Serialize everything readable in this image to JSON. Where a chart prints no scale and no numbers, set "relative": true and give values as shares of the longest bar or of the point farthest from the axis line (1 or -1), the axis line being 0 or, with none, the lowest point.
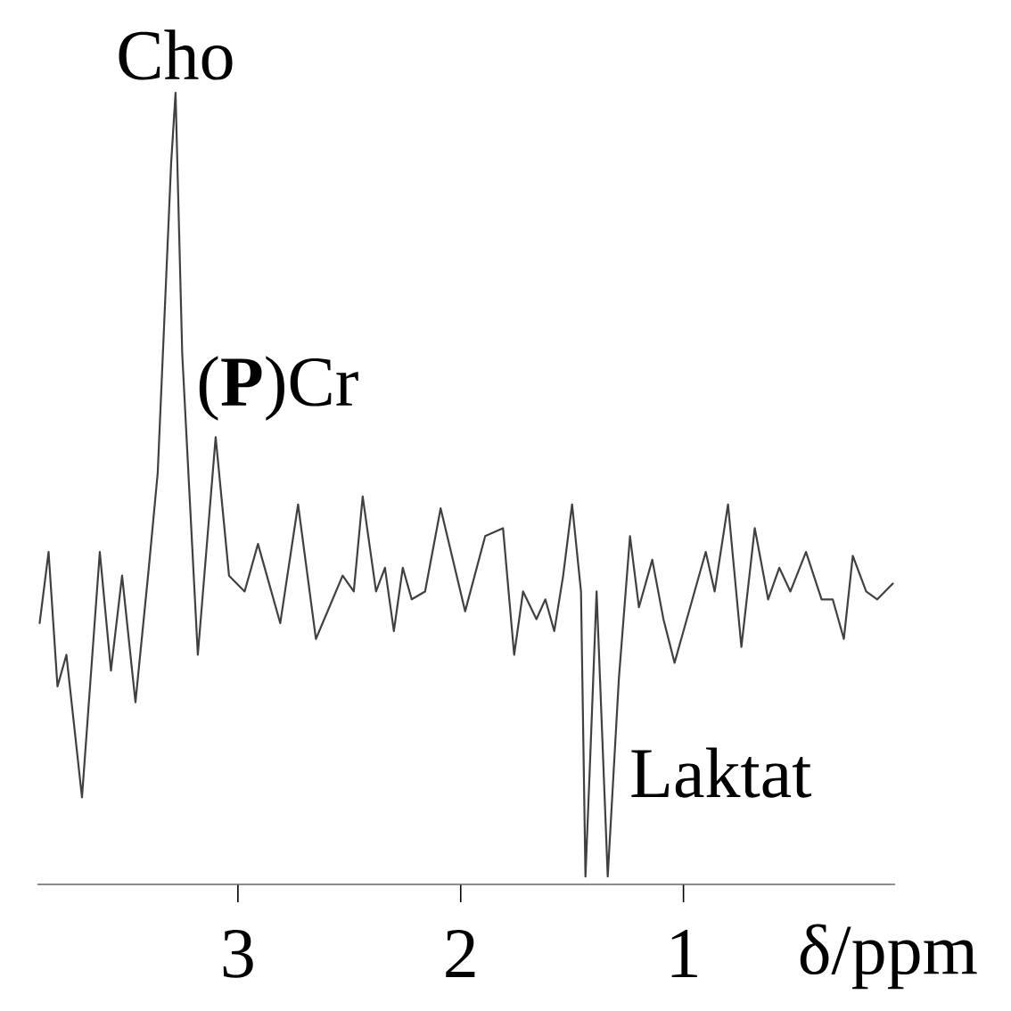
{
  "chart_data": {
    "type": "line",
    "relative": true,
    "xlabel": "δ/ppm",
    "xlim": [
      3.9,
      0.05
    ],
    "xticks": [
      3,
      2,
      1
    ],
    "annotations": [
      {
        "text": "Cho",
        "x": 3.28,
        "y": 1.0
      },
      {
        "text": "(**P**)Cr",
        "x": 3.1,
        "y": 0.565
      },
      {
        "text": "Laktat",
        "x": 1.34,
        "y": 0.01
      }
    ],
    "series": [
      {
        "color": "#404040",
        "x": [
          3.89,
          3.85,
          3.81,
          3.77,
          3.7,
          3.62,
          3.57,
          3.52,
          3.46,
          3.4,
          3.36,
          3.3,
          3.28,
          3.25,
          3.18,
          3.1,
          3.04,
          2.97,
          2.91,
          2.81,
          2.73,
          2.65,
          2.53,
          2.48,
          2.44,
          2.38,
          2.34,
          2.3,
          2.26,
          2.22,
          2.16,
          2.09,
          1.98,
          1.89,
          1.81,
          1.76,
          1.72,
          1.66,
          1.62,
          1.58,
          1.54,
          1.5,
          1.46,
          1.44,
          1.42,
          1.39,
          1.34,
          1.29,
          1.24,
          1.2,
          1.14,
          1.09,
          1.04,
          0.96,
          0.9,
          0.86,
          0.8,
          0.74,
          0.68,
          0.62,
          0.57,
          0.52,
          0.45,
          0.38,
          0.33,
          0.28,
          0.24,
          0.18,
          0.13,
          0.06
        ],
        "values": [
          0.33,
          0.42,
          0.25,
          0.29,
          0.11,
          0.42,
          0.27,
          0.39,
          0.23,
          0.4,
          0.52,
          0.91,
          1.0,
          0.67,
          0.29,
          0.565,
          0.39,
          0.37,
          0.43,
          0.33,
          0.48,
          0.31,
          0.39,
          0.37,
          0.49,
          0.37,
          0.4,
          0.32,
          0.4,
          0.36,
          0.37,
          0.475,
          0.345,
          0.44,
          0.45,
          0.29,
          0.37,
          0.335,
          0.36,
          0.32,
          0.39,
          0.48,
          0.37,
          0.01,
          0.15,
          0.37,
          0.01,
          0.26,
          0.44,
          0.35,
          0.41,
          0.335,
          0.28,
          0.36,
          0.42,
          0.37,
          0.48,
          0.3,
          0.45,
          0.36,
          0.4,
          0.37,
          0.42,
          0.36,
          0.36,
          0.31,
          0.415,
          0.37,
          0.36,
          0.38
        ]
      }
    ]
  }
}
